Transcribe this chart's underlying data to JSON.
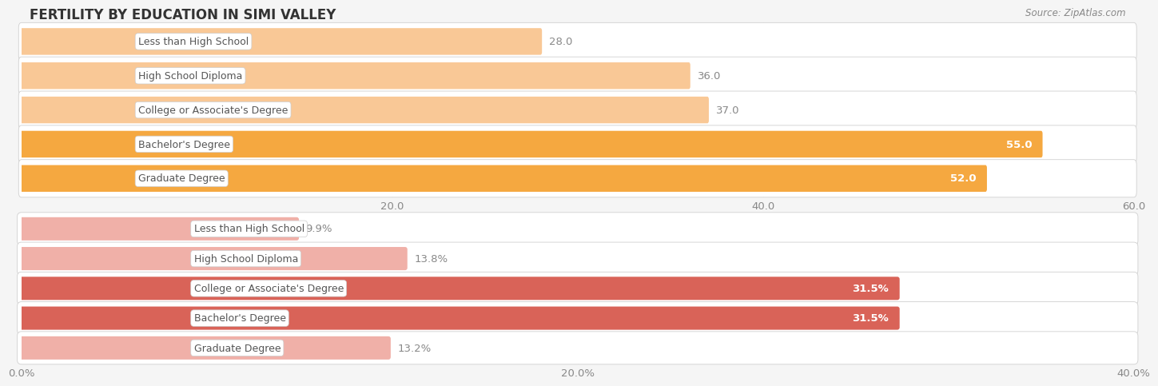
{
  "title": "FERTILITY BY EDUCATION IN SIMI VALLEY",
  "source": "Source: ZipAtlas.com",
  "top_section": {
    "categories": [
      "Less than High School",
      "High School Diploma",
      "College or Associate's Degree",
      "Bachelor's Degree",
      "Graduate Degree"
    ],
    "values": [
      28.0,
      36.0,
      37.0,
      55.0,
      52.0
    ],
    "labels": [
      "28.0",
      "36.0",
      "37.0",
      "55.0",
      "52.0"
    ],
    "colors": [
      "#f9c896",
      "#f9c896",
      "#f9c896",
      "#f5a840",
      "#f5a840"
    ],
    "label_colors": [
      "#888888",
      "#888888",
      "#888888",
      "#ffffff",
      "#ffffff"
    ],
    "xlim": [
      0,
      60
    ],
    "xticks": [
      20.0,
      40.0,
      60.0
    ],
    "xticklabels": [
      "20.0",
      "40.0",
      "60.0"
    ]
  },
  "bottom_section": {
    "categories": [
      "Less than High School",
      "High School Diploma",
      "College or Associate's Degree",
      "Bachelor's Degree",
      "Graduate Degree"
    ],
    "values": [
      9.9,
      13.8,
      31.5,
      31.5,
      13.2
    ],
    "labels": [
      "9.9%",
      "13.8%",
      "31.5%",
      "31.5%",
      "13.2%"
    ],
    "colors": [
      "#f0b0a8",
      "#f0b0a8",
      "#d96358",
      "#d96358",
      "#f0b0a8"
    ],
    "label_colors": [
      "#888888",
      "#888888",
      "#ffffff",
      "#ffffff",
      "#888888"
    ],
    "xlim": [
      0,
      40
    ],
    "xticks": [
      0.0,
      20.0,
      40.0
    ],
    "xticklabels": [
      "0.0%",
      "20.0%",
      "40.0%"
    ]
  },
  "bar_height": 0.62,
  "background_color": "#f5f5f5",
  "panel_bg": "#ffffff",
  "grid_color": "#d8d8d8",
  "label_fontsize": 9.5,
  "tick_fontsize": 9.5,
  "title_fontsize": 12,
  "source_fontsize": 8.5,
  "cat_fontsize": 9
}
